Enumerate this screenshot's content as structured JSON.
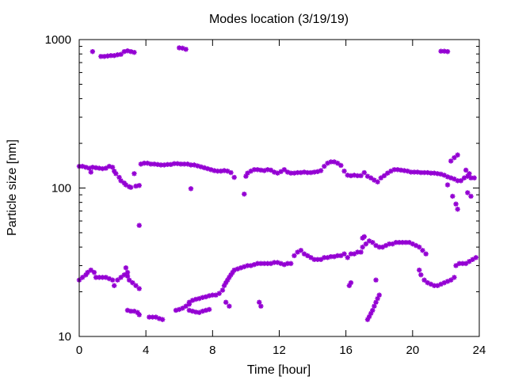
{
  "chart_data": {
    "type": "scatter",
    "title": "Modes location (3/19/19)",
    "xlabel": "Time [hour]",
    "ylabel": "Particle size [nm]",
    "xlim": [
      0,
      24
    ],
    "ylim": [
      10,
      1000
    ],
    "yscale": "log",
    "grid": false,
    "xticks": [
      {
        "value": 0,
        "label": "0"
      },
      {
        "value": 4,
        "label": "4"
      },
      {
        "value": 8,
        "label": "8"
      },
      {
        "value": 12,
        "label": "12"
      },
      {
        "value": 16,
        "label": "16"
      },
      {
        "value": 20,
        "label": "20"
      },
      {
        "value": 24,
        "label": "24"
      }
    ],
    "yticks": [
      {
        "value": 10,
        "label": "10"
      },
      {
        "value": 100,
        "label": "100"
      },
      {
        "value": 1000,
        "label": "1000"
      }
    ],
    "marker_color": "#9400d3",
    "series": [
      {
        "points": [
          [
            0.8,
            830
          ],
          [
            1.3,
            770
          ],
          [
            1.5,
            770
          ],
          [
            1.7,
            775
          ],
          [
            1.9,
            780
          ],
          [
            2.1,
            780
          ],
          [
            2.3,
            790
          ],
          [
            2.5,
            795
          ],
          [
            2.7,
            830
          ],
          [
            2.9,
            840
          ],
          [
            3.1,
            830
          ],
          [
            3.3,
            820
          ],
          [
            6.0,
            880
          ],
          [
            6.2,
            875
          ],
          [
            6.4,
            860
          ],
          [
            21.7,
            835
          ],
          [
            21.9,
            835
          ],
          [
            22.1,
            830
          ],
          [
            0.0,
            140
          ],
          [
            0.2,
            140
          ],
          [
            0.4,
            138
          ],
          [
            0.6,
            136
          ],
          [
            0.7,
            128
          ],
          [
            0.8,
            138
          ],
          [
            1.0,
            137
          ],
          [
            1.2,
            136
          ],
          [
            1.4,
            135
          ],
          [
            1.6,
            136
          ],
          [
            1.8,
            140
          ],
          [
            2.0,
            138
          ],
          [
            2.1,
            130
          ],
          [
            2.2,
            125
          ],
          [
            2.4,
            118
          ],
          [
            2.5,
            112
          ],
          [
            2.7,
            108
          ],
          [
            2.8,
            105
          ],
          [
            3.0,
            102
          ],
          [
            3.1,
            101
          ],
          [
            3.3,
            125
          ],
          [
            3.4,
            103
          ],
          [
            3.6,
            104
          ],
          [
            3.7,
            145
          ],
          [
            3.9,
            147
          ],
          [
            4.1,
            147
          ],
          [
            4.3,
            145
          ],
          [
            4.5,
            145
          ],
          [
            4.7,
            144
          ],
          [
            4.9,
            143
          ],
          [
            5.1,
            143
          ],
          [
            5.3,
            144
          ],
          [
            5.5,
            144
          ],
          [
            5.7,
            146
          ],
          [
            5.9,
            146
          ],
          [
            6.1,
            145
          ],
          [
            6.3,
            145
          ],
          [
            6.5,
            145
          ],
          [
            6.7,
            143
          ],
          [
            6.9,
            143
          ],
          [
            7.1,
            141
          ],
          [
            7.3,
            139
          ],
          [
            7.5,
            137
          ],
          [
            7.7,
            135
          ],
          [
            7.9,
            133
          ],
          [
            8.1,
            131
          ],
          [
            8.3,
            130
          ],
          [
            8.5,
            130
          ],
          [
            8.7,
            131
          ],
          [
            8.9,
            130
          ],
          [
            9.1,
            127
          ],
          [
            9.3,
            118
          ],
          [
            6.7,
            99
          ],
          [
            9.9,
            91
          ],
          [
            10.0,
            120
          ],
          [
            10.1,
            126
          ],
          [
            10.3,
            130
          ],
          [
            10.5,
            133
          ],
          [
            10.7,
            133
          ],
          [
            10.9,
            132
          ],
          [
            11.1,
            131
          ],
          [
            11.3,
            133
          ],
          [
            11.5,
            132
          ],
          [
            11.7,
            128
          ],
          [
            11.9,
            126
          ],
          [
            12.1,
            129
          ],
          [
            12.3,
            133
          ],
          [
            12.5,
            128
          ],
          [
            12.7,
            126
          ],
          [
            12.9,
            126
          ],
          [
            13.1,
            127
          ],
          [
            13.3,
            127
          ],
          [
            13.5,
            128
          ],
          [
            13.7,
            127
          ],
          [
            13.9,
            127
          ],
          [
            14.1,
            128
          ],
          [
            14.3,
            129
          ],
          [
            14.5,
            131
          ],
          [
            14.7,
            140
          ],
          [
            14.9,
            147
          ],
          [
            15.1,
            150
          ],
          [
            15.3,
            150
          ],
          [
            15.5,
            147
          ],
          [
            15.7,
            142
          ],
          [
            15.9,
            130
          ],
          [
            16.1,
            122
          ],
          [
            16.3,
            121
          ],
          [
            16.5,
            122
          ],
          [
            16.7,
            121
          ],
          [
            16.9,
            121
          ],
          [
            17.1,
            127
          ],
          [
            17.3,
            120
          ],
          [
            17.5,
            117
          ],
          [
            17.7,
            113
          ],
          [
            17.9,
            110
          ],
          [
            18.1,
            117
          ],
          [
            18.3,
            121
          ],
          [
            18.5,
            126
          ],
          [
            18.7,
            130
          ],
          [
            18.9,
            133
          ],
          [
            19.1,
            133
          ],
          [
            19.3,
            132
          ],
          [
            19.5,
            131
          ],
          [
            19.7,
            130
          ],
          [
            19.9,
            128
          ],
          [
            20.1,
            128
          ],
          [
            20.3,
            128
          ],
          [
            20.5,
            127
          ],
          [
            20.7,
            127
          ],
          [
            20.9,
            127
          ],
          [
            21.1,
            126
          ],
          [
            21.3,
            126
          ],
          [
            21.5,
            125
          ],
          [
            21.7,
            124
          ],
          [
            21.9,
            122
          ],
          [
            22.1,
            119
          ],
          [
            22.3,
            117
          ],
          [
            22.5,
            115
          ],
          [
            22.7,
            112
          ],
          [
            22.9,
            112
          ],
          [
            23.1,
            117
          ],
          [
            23.3,
            120
          ],
          [
            23.5,
            117
          ],
          [
            23.7,
            117
          ],
          [
            23.2,
            132
          ],
          [
            23.4,
            125
          ],
          [
            23.3,
            93
          ],
          [
            23.5,
            88
          ],
          [
            22.1,
            105
          ],
          [
            22.3,
            152
          ],
          [
            22.5,
            160
          ],
          [
            22.7,
            167
          ],
          [
            22.4,
            88
          ],
          [
            22.6,
            78
          ],
          [
            22.7,
            72
          ],
          [
            3.6,
            56
          ],
          [
            0.0,
            24
          ],
          [
            0.2,
            25
          ],
          [
            0.4,
            26
          ],
          [
            0.5,
            27
          ],
          [
            0.7,
            28
          ],
          [
            0.9,
            27
          ],
          [
            1.0,
            25
          ],
          [
            1.2,
            25
          ],
          [
            1.4,
            25
          ],
          [
            1.6,
            25
          ],
          [
            1.8,
            24.5
          ],
          [
            2.0,
            24
          ],
          [
            2.1,
            22
          ],
          [
            2.3,
            24
          ],
          [
            2.5,
            25
          ],
          [
            2.7,
            26
          ],
          [
            2.9,
            25.5
          ],
          [
            3.0,
            24
          ],
          [
            3.2,
            23
          ],
          [
            3.4,
            22
          ],
          [
            3.6,
            21
          ],
          [
            2.8,
            29
          ],
          [
            2.9,
            27
          ],
          [
            2.9,
            15
          ],
          [
            3.1,
            14.8
          ],
          [
            3.3,
            14.8
          ],
          [
            3.5,
            14.5
          ],
          [
            3.6,
            14
          ],
          [
            4.2,
            13.5
          ],
          [
            4.4,
            13.5
          ],
          [
            4.6,
            13.5
          ],
          [
            4.8,
            13.2
          ],
          [
            5.0,
            13
          ],
          [
            5.8,
            15
          ],
          [
            6.0,
            15.2
          ],
          [
            6.2,
            15.5
          ],
          [
            6.4,
            16
          ],
          [
            6.6,
            16.5
          ],
          [
            6.6,
            15
          ],
          [
            6.8,
            14.8
          ],
          [
            7.0,
            14.6
          ],
          [
            7.2,
            14.5
          ],
          [
            7.4,
            14.8
          ],
          [
            7.6,
            15
          ],
          [
            7.8,
            15.2
          ],
          [
            6.6,
            17
          ],
          [
            6.8,
            17.5
          ],
          [
            7.0,
            17.8
          ],
          [
            7.2,
            18
          ],
          [
            7.4,
            18.3
          ],
          [
            7.6,
            18.5
          ],
          [
            7.8,
            18.8
          ],
          [
            8.0,
            19
          ],
          [
            8.2,
            19
          ],
          [
            8.4,
            19.5
          ],
          [
            8.6,
            20.5
          ],
          [
            8.7,
            22
          ],
          [
            8.8,
            23
          ],
          [
            8.9,
            24
          ],
          [
            9.0,
            25
          ],
          [
            9.1,
            26
          ],
          [
            9.2,
            27
          ],
          [
            8.8,
            17
          ],
          [
            9.0,
            16
          ],
          [
            9.3,
            28
          ],
          [
            9.5,
            28.5
          ],
          [
            9.7,
            29
          ],
          [
            9.9,
            29.5
          ],
          [
            10.1,
            30
          ],
          [
            10.3,
            30
          ],
          [
            10.5,
            30.5
          ],
          [
            10.7,
            31
          ],
          [
            10.9,
            31
          ],
          [
            11.1,
            31
          ],
          [
            11.3,
            31
          ],
          [
            11.5,
            31
          ],
          [
            11.7,
            31.5
          ],
          [
            11.9,
            31.5
          ],
          [
            12.1,
            31
          ],
          [
            12.3,
            30.5
          ],
          [
            12.5,
            31
          ],
          [
            12.7,
            31
          ],
          [
            12.9,
            35
          ],
          [
            13.1,
            37
          ],
          [
            13.3,
            38
          ],
          [
            13.5,
            36
          ],
          [
            13.7,
            35
          ],
          [
            13.9,
            34
          ],
          [
            14.1,
            33
          ],
          [
            14.3,
            33
          ],
          [
            14.5,
            33
          ],
          [
            14.7,
            34
          ],
          [
            14.9,
            34
          ],
          [
            15.1,
            34.5
          ],
          [
            15.3,
            34.5
          ],
          [
            15.5,
            35
          ],
          [
            15.7,
            35
          ],
          [
            15.9,
            36
          ],
          [
            16.1,
            34
          ],
          [
            16.3,
            36
          ],
          [
            16.5,
            36
          ],
          [
            16.7,
            37
          ],
          [
            16.9,
            37
          ],
          [
            17.0,
            40
          ],
          [
            17.2,
            42
          ],
          [
            17.4,
            44
          ],
          [
            17.6,
            43
          ],
          [
            17.8,
            41
          ],
          [
            18.0,
            40
          ],
          [
            18.2,
            40
          ],
          [
            18.4,
            41
          ],
          [
            18.6,
            42
          ],
          [
            18.8,
            42
          ],
          [
            19.0,
            43
          ],
          [
            19.2,
            43
          ],
          [
            19.4,
            43
          ],
          [
            19.6,
            43
          ],
          [
            19.8,
            43
          ],
          [
            20.0,
            42
          ],
          [
            20.2,
            41
          ],
          [
            20.4,
            40
          ],
          [
            20.6,
            38
          ],
          [
            20.8,
            36
          ],
          [
            17.0,
            46
          ],
          [
            17.1,
            47
          ],
          [
            20.4,
            28
          ],
          [
            20.5,
            26
          ],
          [
            20.7,
            24
          ],
          [
            20.9,
            23
          ],
          [
            21.1,
            22.5
          ],
          [
            21.3,
            22
          ],
          [
            21.5,
            22
          ],
          [
            21.7,
            22.5
          ],
          [
            21.9,
            23
          ],
          [
            22.1,
            23.5
          ],
          [
            22.3,
            24
          ],
          [
            22.5,
            25
          ],
          [
            22.6,
            30
          ],
          [
            22.8,
            31
          ],
          [
            23.0,
            31
          ],
          [
            23.2,
            31
          ],
          [
            23.4,
            32
          ],
          [
            23.6,
            33
          ],
          [
            23.8,
            34
          ],
          [
            16.2,
            22
          ],
          [
            16.3,
            23
          ],
          [
            10.8,
            17
          ],
          [
            10.9,
            16
          ],
          [
            17.8,
            24
          ],
          [
            17.3,
            13
          ],
          [
            17.4,
            13.6
          ],
          [
            17.5,
            14.3
          ],
          [
            17.6,
            15
          ],
          [
            17.7,
            16
          ],
          [
            17.8,
            17
          ],
          [
            17.9,
            18
          ],
          [
            18.0,
            19
          ]
        ]
      }
    ]
  }
}
